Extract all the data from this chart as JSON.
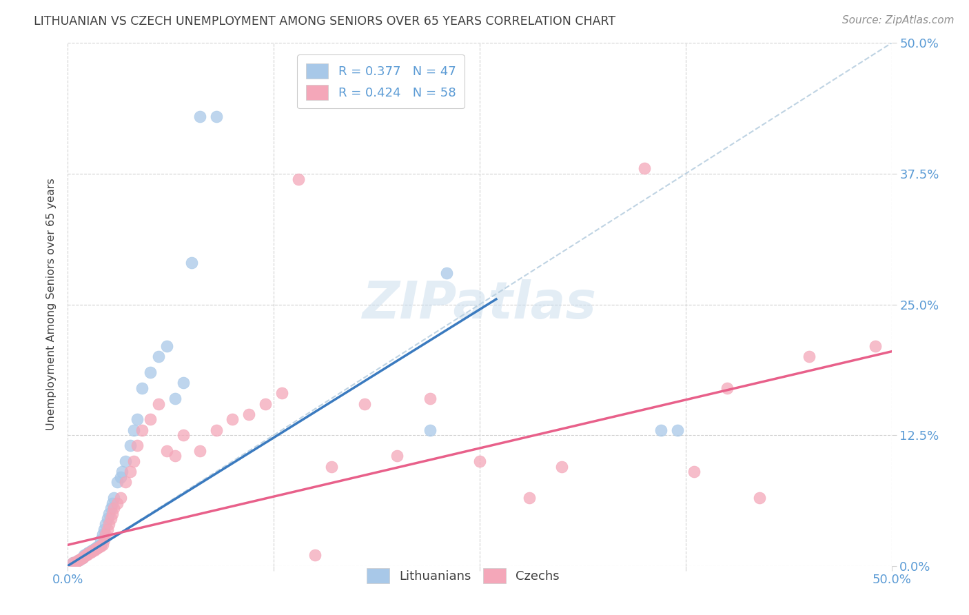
{
  "title": "LITHUANIAN VS CZECH UNEMPLOYMENT AMONG SENIORS OVER 65 YEARS CORRELATION CHART",
  "source": "Source: ZipAtlas.com",
  "ylabel": "Unemployment Among Seniors over 65 years",
  "watermark": "ZIPatlas",
  "blue_scatter_color": "#a8c8e8",
  "pink_scatter_color": "#f4a7b9",
  "blue_line_color": "#3a7abf",
  "pink_line_color": "#e8608a",
  "dashed_line_color": "#b8cfe0",
  "background_color": "#ffffff",
  "grid_color": "#d0d0d0",
  "title_color": "#404040",
  "axis_label_color": "#404040",
  "tick_color": "#5b9bd5",
  "xlim": [
    0,
    0.5
  ],
  "ylim": [
    0,
    0.5
  ],
  "blue_R": 0.377,
  "blue_N": 47,
  "pink_R": 0.424,
  "pink_N": 58,
  "blue_line_x": [
    0.0,
    0.26
  ],
  "blue_line_y": [
    0.0,
    0.255
  ],
  "pink_line_x": [
    0.0,
    0.5
  ],
  "pink_line_y": [
    0.02,
    0.205
  ],
  "dashed_line_x": [
    0.0,
    0.5
  ],
  "dashed_line_y": [
    0.0,
    0.5
  ],
  "blue_scatter_x": [
    0.003,
    0.005,
    0.006,
    0.007,
    0.008,
    0.009,
    0.01,
    0.01,
    0.011,
    0.012,
    0.013,
    0.014,
    0.015,
    0.016,
    0.017,
    0.018,
    0.019,
    0.02,
    0.02,
    0.021,
    0.022,
    0.023,
    0.024,
    0.025,
    0.026,
    0.027,
    0.028,
    0.03,
    0.032,
    0.033,
    0.035,
    0.038,
    0.04,
    0.042,
    0.045,
    0.05,
    0.055,
    0.06,
    0.065,
    0.07,
    0.075,
    0.08,
    0.09,
    0.22,
    0.23,
    0.36,
    0.37
  ],
  "blue_scatter_y": [
    0.003,
    0.004,
    0.005,
    0.006,
    0.007,
    0.008,
    0.009,
    0.01,
    0.011,
    0.012,
    0.013,
    0.014,
    0.015,
    0.016,
    0.017,
    0.018,
    0.019,
    0.02,
    0.025,
    0.03,
    0.035,
    0.04,
    0.045,
    0.05,
    0.055,
    0.06,
    0.065,
    0.08,
    0.085,
    0.09,
    0.1,
    0.115,
    0.13,
    0.14,
    0.17,
    0.185,
    0.2,
    0.21,
    0.16,
    0.175,
    0.29,
    0.43,
    0.43,
    0.13,
    0.28,
    0.13,
    0.13
  ],
  "pink_scatter_x": [
    0.003,
    0.005,
    0.006,
    0.007,
    0.008,
    0.009,
    0.01,
    0.011,
    0.012,
    0.013,
    0.014,
    0.015,
    0.016,
    0.017,
    0.018,
    0.019,
    0.02,
    0.021,
    0.022,
    0.023,
    0.024,
    0.025,
    0.026,
    0.027,
    0.028,
    0.03,
    0.032,
    0.035,
    0.038,
    0.04,
    0.042,
    0.045,
    0.05,
    0.055,
    0.06,
    0.065,
    0.07,
    0.08,
    0.09,
    0.1,
    0.11,
    0.12,
    0.13,
    0.14,
    0.15,
    0.16,
    0.18,
    0.2,
    0.22,
    0.25,
    0.28,
    0.3,
    0.35,
    0.38,
    0.4,
    0.42,
    0.45,
    0.49
  ],
  "pink_scatter_y": [
    0.003,
    0.004,
    0.005,
    0.006,
    0.007,
    0.008,
    0.009,
    0.01,
    0.011,
    0.012,
    0.013,
    0.014,
    0.015,
    0.016,
    0.017,
    0.018,
    0.019,
    0.02,
    0.025,
    0.03,
    0.035,
    0.04,
    0.045,
    0.05,
    0.055,
    0.06,
    0.065,
    0.08,
    0.09,
    0.1,
    0.115,
    0.13,
    0.14,
    0.155,
    0.11,
    0.105,
    0.125,
    0.11,
    0.13,
    0.14,
    0.145,
    0.155,
    0.165,
    0.37,
    0.01,
    0.095,
    0.155,
    0.105,
    0.16,
    0.1,
    0.065,
    0.095,
    0.38,
    0.09,
    0.17,
    0.065,
    0.2,
    0.21
  ]
}
